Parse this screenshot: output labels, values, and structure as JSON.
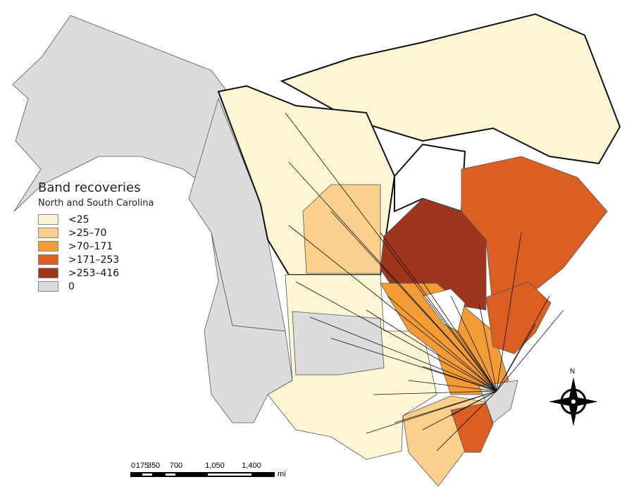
{
  "legend": {
    "title": "Band recoveries",
    "subtitle": "North and South Carolina",
    "classes": [
      {
        "label": "<25",
        "color": "#fdf5d3"
      },
      {
        "label": ">25–70",
        "color": "#fbd08c"
      },
      {
        "label": ">70–171",
        "color": "#f39b34"
      },
      {
        "label": ">171–253",
        "color": "#db5e22"
      },
      {
        "label": ">253–416",
        "color": "#9f351c"
      },
      {
        "label": "0",
        "color": "#dcdcdc"
      }
    ]
  },
  "scale_bar": {
    "ticks": [
      "0",
      "175",
      "350",
      "700",
      "1,050",
      "1,400"
    ],
    "unit": "mi"
  },
  "compass": {
    "label": "N"
  }
}
